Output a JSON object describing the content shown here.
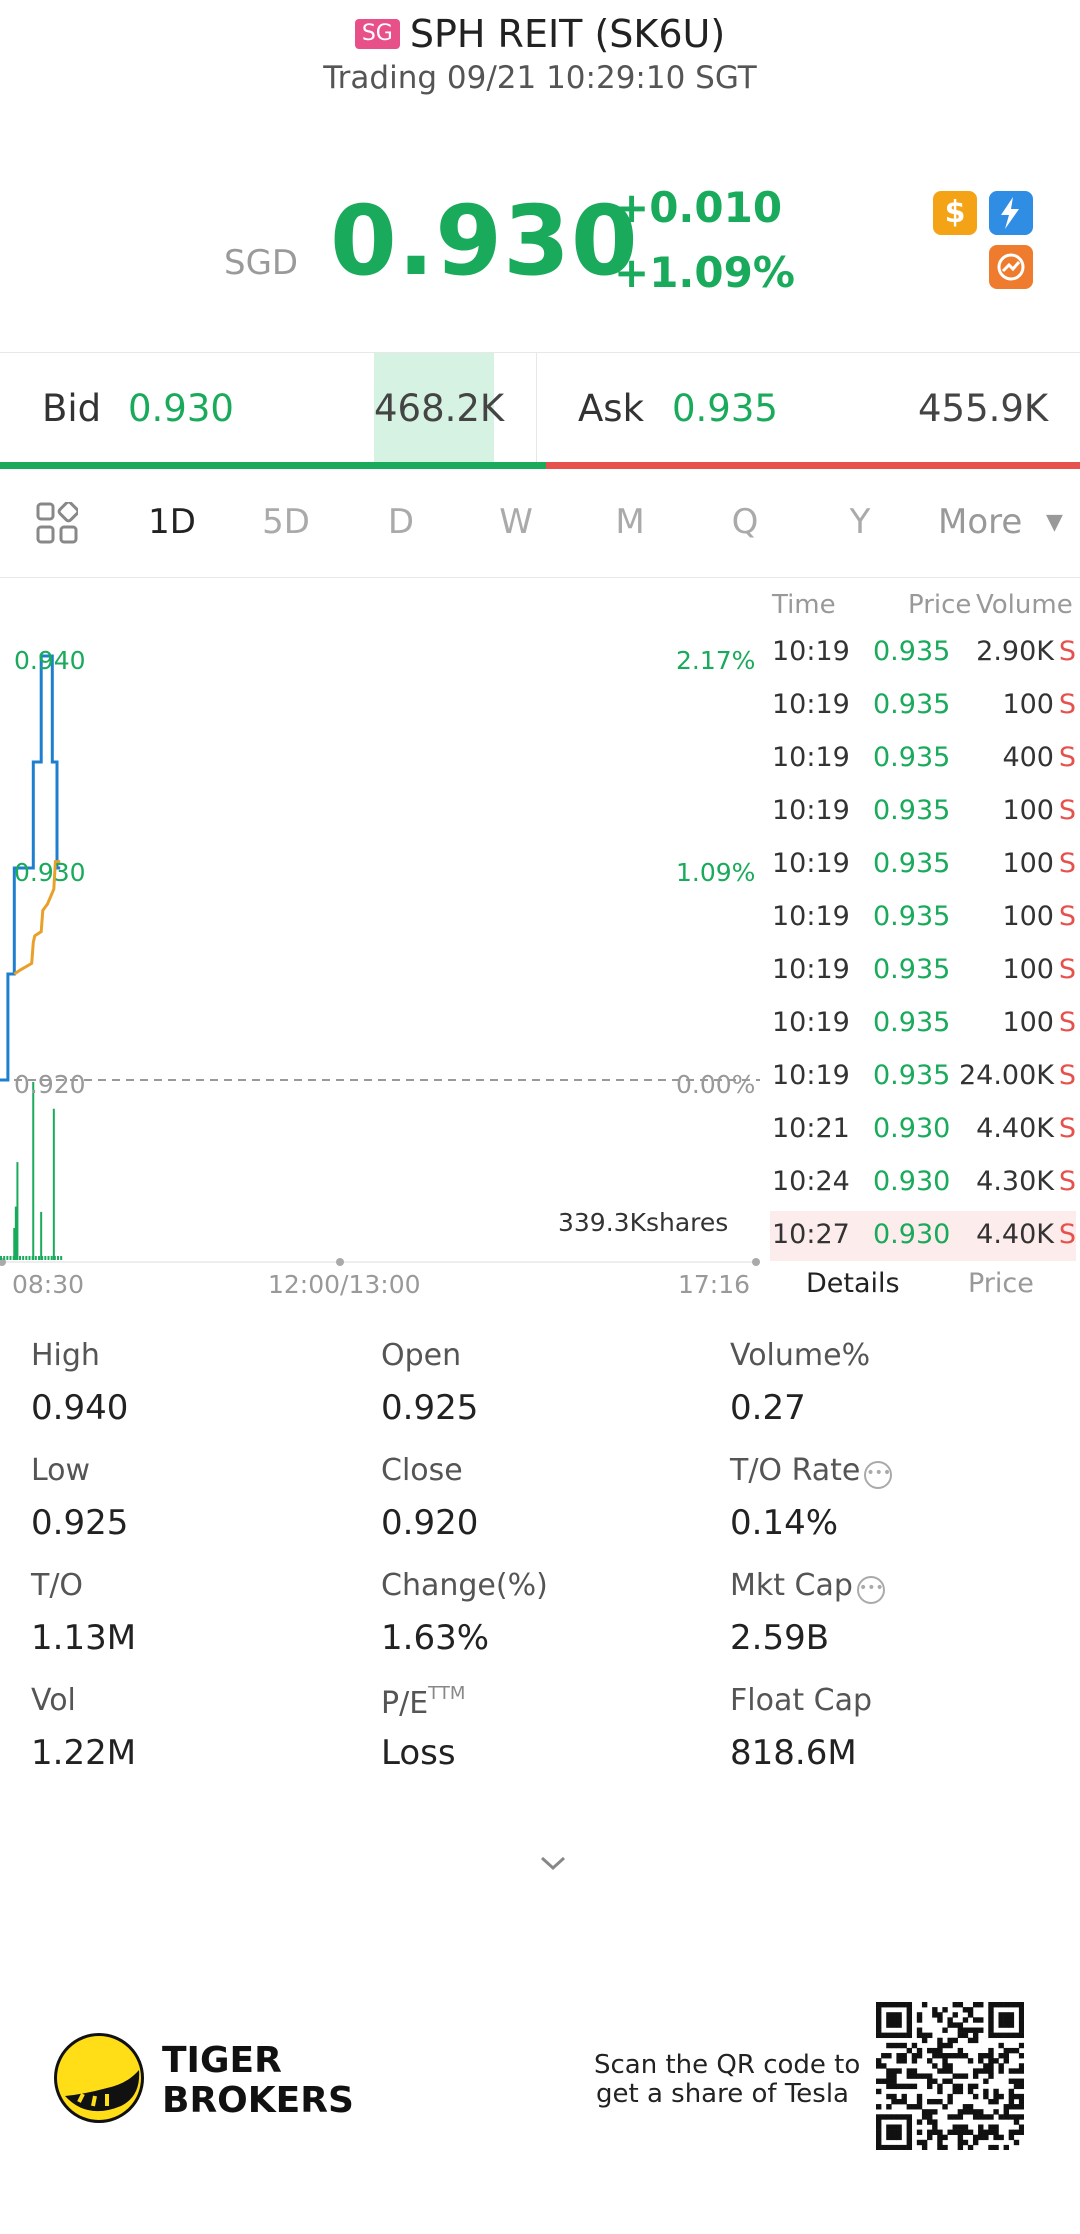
{
  "header": {
    "market_badge": "SG",
    "stock_name": "SPH REIT (SK6U)",
    "status": "Trading 09/21 10:29:10 SGT"
  },
  "quote": {
    "currency": "SGD",
    "price": "0.930",
    "change": "+0.010",
    "change_pct": "+1.09%",
    "icons": [
      "dollar-icon",
      "flash-icon",
      "share-icon"
    ]
  },
  "bidask": {
    "bid_label": "Bid",
    "bid_price": "0.930",
    "bid_size": "468.2K",
    "ask_label": "Ask",
    "ask_price": "0.935",
    "ask_size": "455.9K"
  },
  "tabs": {
    "items": [
      "1D",
      "5D",
      "D",
      "W",
      "M",
      "Q",
      "Y"
    ],
    "active": "1D",
    "more_label": "More"
  },
  "chart_data": {
    "type": "line",
    "x_labels": [
      "08:30",
      "12:00/13:00",
      "17:16"
    ],
    "y_labels_left": [
      "0.940",
      "0.930",
      "0.920"
    ],
    "y_labels_right": [
      "2.17%",
      "1.09%",
      "0.00%"
    ],
    "ylim": [
      0.92,
      0.94
    ],
    "prev_close": 0.92,
    "volume_label": "339.3Kshares",
    "series": [
      {
        "name": "",
        "color": "#1f7fcf",
        "x": [
          0,
          5,
          5,
          9,
          9,
          21,
          21,
          26,
          26,
          33,
          33,
          36,
          36,
          38
        ],
        "y": [
          0.92,
          0.92,
          0.925,
          0.925,
          0.93,
          0.93,
          0.935,
          0.935,
          0.94,
          0.94,
          0.935,
          0.935,
          0.93,
          0.93
        ]
      },
      {
        "name": "",
        "color": "#e8a02a",
        "x": [
          9,
          13,
          20,
          21,
          22,
          26,
          27,
          30,
          34,
          35,
          38
        ],
        "y": [
          0.925,
          0.9252,
          0.9255,
          0.9265,
          0.9268,
          0.927,
          0.928,
          0.9283,
          0.929,
          0.9303,
          0.9303
        ]
      }
    ],
    "volume": {
      "x": [
        9,
        10,
        11,
        21,
        26,
        34
      ],
      "v": [
        0.18,
        0.3,
        0.55,
        1.0,
        0.27,
        0.85
      ]
    }
  },
  "trades": {
    "headers": [
      "Time",
      "Price",
      "Volume"
    ],
    "rows": [
      {
        "time": "10:19",
        "price": "0.935",
        "volume": "2.90K",
        "side": "S"
      },
      {
        "time": "10:19",
        "price": "0.935",
        "volume": "100",
        "side": "S"
      },
      {
        "time": "10:19",
        "price": "0.935",
        "volume": "400",
        "side": "S"
      },
      {
        "time": "10:19",
        "price": "0.935",
        "volume": "100",
        "side": "S"
      },
      {
        "time": "10:19",
        "price": "0.935",
        "volume": "100",
        "side": "S"
      },
      {
        "time": "10:19",
        "price": "0.935",
        "volume": "100",
        "side": "S"
      },
      {
        "time": "10:19",
        "price": "0.935",
        "volume": "100",
        "side": "S"
      },
      {
        "time": "10:19",
        "price": "0.935",
        "volume": "100",
        "side": "S"
      },
      {
        "time": "10:19",
        "price": "0.935",
        "volume": "24.00K",
        "side": "S"
      },
      {
        "time": "10:21",
        "price": "0.930",
        "volume": "4.40K",
        "side": "S"
      },
      {
        "time": "10:24",
        "price": "0.930",
        "volume": "4.30K",
        "side": "S"
      },
      {
        "time": "10:27",
        "price": "0.930",
        "volume": "4.40K",
        "side": "S"
      }
    ],
    "tab_details": "Details",
    "tab_price": "Price"
  },
  "stats": {
    "high_label": "High",
    "high": "0.940",
    "open_label": "Open",
    "open": "0.925",
    "volpct_label": "Volume%",
    "volpct": "0.27",
    "low_label": "Low",
    "low": "0.925",
    "close_label": "Close",
    "close": "0.920",
    "torate_label": "T/O Rate",
    "torate": "0.14%",
    "to_label": "T/O",
    "to": "1.13M",
    "change_label": "Change(%)",
    "change": "1.63%",
    "mktcap_label": "Mkt Cap",
    "mktcap": "2.59B",
    "vol_label": "Vol",
    "vol": "1.22M",
    "pe_label": "P/E",
    "pe_sup": "TTM",
    "pe": "Loss",
    "floatcap_label": "Float Cap",
    "floatcap": "818.6M"
  },
  "footer": {
    "brand_line1": "TIGER",
    "brand_line2": "BROKERS",
    "promo_line1": "Scan the QR code to",
    "promo_line2": "get a share of Tesla"
  }
}
